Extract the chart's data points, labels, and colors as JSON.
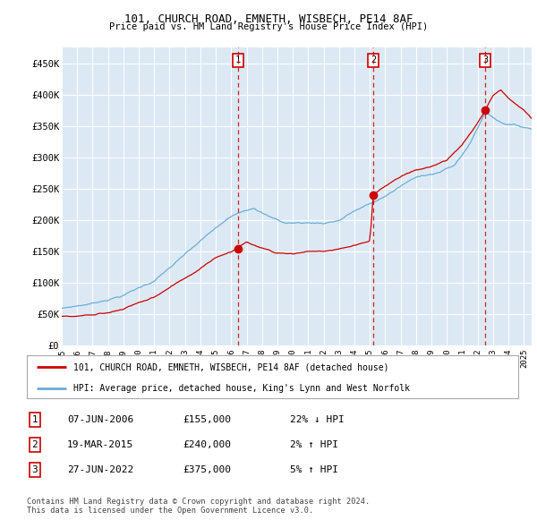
{
  "title1": "101, CHURCH ROAD, EMNETH, WISBECH, PE14 8AF",
  "title2": "Price paid vs. HM Land Registry's House Price Index (HPI)",
  "ylabel_ticks": [
    "£0",
    "£50K",
    "£100K",
    "£150K",
    "£200K",
    "£250K",
    "£300K",
    "£350K",
    "£400K",
    "£450K"
  ],
  "ytick_values": [
    0,
    50000,
    100000,
    150000,
    200000,
    250000,
    300000,
    350000,
    400000,
    450000
  ],
  "ylim": [
    0,
    475000
  ],
  "xlim_start": 1995.0,
  "xlim_end": 2025.5,
  "background_color": "#dce9f5",
  "sale_dates": [
    2006.44,
    2015.22,
    2022.49
  ],
  "sale_labels": [
    "1",
    "2",
    "3"
  ],
  "sale_prices": [
    155000,
    240000,
    375000
  ],
  "legend_line1": "101, CHURCH ROAD, EMNETH, WISBECH, PE14 8AF (detached house)",
  "legend_line2": "HPI: Average price, detached house, King's Lynn and West Norfolk",
  "table_rows": [
    [
      "1",
      "07-JUN-2006",
      "£155,000",
      "22% ↓ HPI"
    ],
    [
      "2",
      "19-MAR-2015",
      "£240,000",
      "2% ↑ HPI"
    ],
    [
      "3",
      "27-JUN-2022",
      "£375,000",
      "5% ↑ HPI"
    ]
  ],
  "footnote": "Contains HM Land Registry data © Crown copyright and database right 2024.\nThis data is licensed under the Open Government Licence v3.0.",
  "hpi_color": "#6baed6",
  "price_color": "#cc0000",
  "vline_color": "#cc0000",
  "box_color": "#cc0000"
}
